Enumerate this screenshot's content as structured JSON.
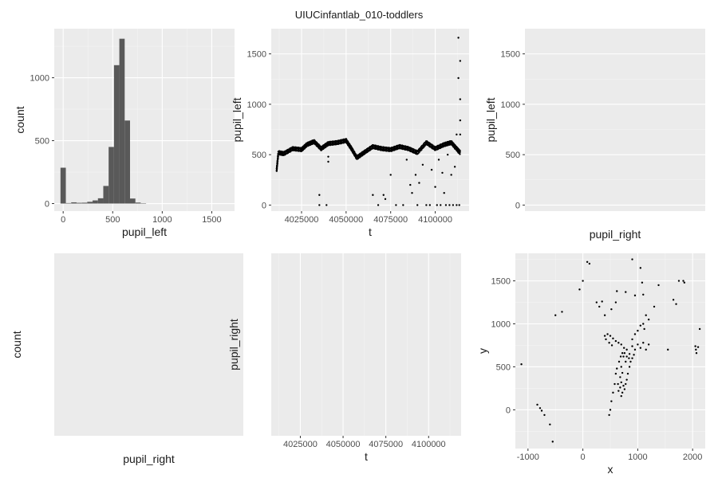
{
  "title": "UIUCinfantlab_010-toddlers",
  "chart_data": [
    {
      "id": "hist-pupil-left",
      "type": "bar",
      "xlabel": "pupil_left",
      "ylabel": "count",
      "xlim": [
        -90,
        1730
      ],
      "ylim": [
        -60,
        1390
      ],
      "xticks": [
        0,
        500,
        1000,
        1500
      ],
      "yticks": [
        0,
        500,
        1000
      ],
      "bins": [
        {
          "x0": -27,
          "x1": 27,
          "count": 285
        },
        {
          "x0": 27,
          "x1": 81,
          "count": 4
        },
        {
          "x0": 81,
          "x1": 135,
          "count": 10
        },
        {
          "x0": 135,
          "x1": 189,
          "count": 6
        },
        {
          "x0": 189,
          "x1": 243,
          "count": 7
        },
        {
          "x0": 243,
          "x1": 297,
          "count": 14
        },
        {
          "x0": 297,
          "x1": 351,
          "count": 25
        },
        {
          "x0": 351,
          "x1": 405,
          "count": 42
        },
        {
          "x0": 405,
          "x1": 459,
          "count": 140
        },
        {
          "x0": 459,
          "x1": 513,
          "count": 450
        },
        {
          "x0": 513,
          "x1": 567,
          "count": 1100
        },
        {
          "x0": 567,
          "x1": 621,
          "count": 1310
        },
        {
          "x0": 621,
          "x1": 675,
          "count": 660
        },
        {
          "x0": 675,
          "x1": 729,
          "count": 40
        },
        {
          "x0": 729,
          "x1": 783,
          "count": 8
        },
        {
          "x0": 783,
          "x1": 837,
          "count": 3
        }
      ]
    },
    {
      "id": "scatter-t-pupil-left",
      "type": "scatter",
      "xlabel": "t",
      "ylabel": "pupil_left",
      "xlim": [
        4008000,
        4119000
      ],
      "ylim": [
        -60,
        1750
      ],
      "xticks": [
        4025000,
        4050000,
        4075000,
        4100000
      ],
      "yticks": [
        0,
        500,
        1000,
        1500
      ],
      "trace": [
        [
          4011000,
          340
        ],
        [
          4012000,
          520
        ],
        [
          4015000,
          510
        ],
        [
          4020000,
          560
        ],
        [
          4025000,
          550
        ],
        [
          4028000,
          600
        ],
        [
          4032000,
          630
        ],
        [
          4036000,
          560
        ],
        [
          4040000,
          610
        ],
        [
          4045000,
          620
        ],
        [
          4050000,
          640
        ],
        [
          4053000,
          560
        ],
        [
          4056000,
          470
        ],
        [
          4060000,
          520
        ],
        [
          4065000,
          580
        ],
        [
          4070000,
          560
        ],
        [
          4075000,
          550
        ],
        [
          4080000,
          580
        ],
        [
          4085000,
          560
        ],
        [
          4090000,
          520
        ],
        [
          4095000,
          620
        ],
        [
          4100000,
          560
        ],
        [
          4105000,
          600
        ],
        [
          4109000,
          620
        ],
        [
          4112000,
          560
        ],
        [
          4114000,
          520
        ]
      ],
      "points": [
        [
          4035000,
          0
        ],
        [
          4035000,
          100
        ],
        [
          4039000,
          0
        ],
        [
          4040000,
          430
        ],
        [
          4040000,
          480
        ],
        [
          4065000,
          100
        ],
        [
          4068000,
          0
        ],
        [
          4071000,
          100
        ],
        [
          4072000,
          60
        ],
        [
          4075000,
          300
        ],
        [
          4078000,
          0
        ],
        [
          4082000,
          0
        ],
        [
          4084000,
          450
        ],
        [
          4086000,
          200
        ],
        [
          4087000,
          120
        ],
        [
          4089000,
          300
        ],
        [
          4090000,
          0
        ],
        [
          4091000,
          220
        ],
        [
          4093000,
          400
        ],
        [
          4095000,
          0
        ],
        [
          4097000,
          0
        ],
        [
          4098000,
          350
        ],
        [
          4100000,
          180
        ],
        [
          4101000,
          0
        ],
        [
          4102000,
          450
        ],
        [
          4103000,
          0
        ],
        [
          4104000,
          320
        ],
        [
          4105000,
          120
        ],
        [
          4106000,
          0
        ],
        [
          4107000,
          500
        ],
        [
          4108000,
          0
        ],
        [
          4109000,
          300
        ],
        [
          4110000,
          0
        ],
        [
          4111000,
          380
        ],
        [
          4112000,
          0
        ],
        [
          4113000,
          520
        ],
        [
          4113500,
          0
        ],
        [
          4114000,
          700
        ],
        [
          4114000,
          840
        ],
        [
          4114000,
          1050
        ],
        [
          4114000,
          1430
        ],
        [
          4113000,
          1660
        ],
        [
          4113000,
          1260
        ],
        [
          4112000,
          700
        ],
        [
          4111000,
          560
        ]
      ]
    },
    {
      "id": "scatter-pupil-right-pupil-left",
      "type": "scatter",
      "xlabel": "pupil_right",
      "ylabel": "pupil_left",
      "ylim": [
        -60,
        1750
      ],
      "yticks": [
        0,
        500,
        1000,
        1500
      ],
      "points": []
    },
    {
      "id": "hist-pupil-right",
      "type": "bar",
      "xlabel": "pupil_right",
      "ylabel": "count",
      "bins": []
    },
    {
      "id": "scatter-t-pupil-right",
      "type": "scatter",
      "xlabel": "t",
      "ylabel": "pupil_right",
      "xlim": [
        4008000,
        4119000
      ],
      "xticks": [
        4025000,
        4050000,
        4075000,
        4100000
      ],
      "points": []
    },
    {
      "id": "scatter-x-y",
      "type": "scatter",
      "xlabel": "x",
      "ylabel": "y",
      "xlim": [
        -1230,
        2230
      ],
      "ylim": [
        -450,
        1820
      ],
      "xticks": [
        -1000,
        0,
        1000,
        2000
      ],
      "yticks": [
        0,
        500,
        1000,
        1500
      ],
      "points": [
        [
          -1120,
          530
        ],
        [
          -830,
          60
        ],
        [
          -780,
          20
        ],
        [
          -750,
          -10
        ],
        [
          -700,
          -60
        ],
        [
          -600,
          -170
        ],
        [
          -550,
          -370
        ],
        [
          -500,
          1100
        ],
        [
          -380,
          1140
        ],
        [
          -60,
          1400
        ],
        [
          0,
          1500
        ],
        [
          80,
          1720
        ],
        [
          120,
          1700
        ],
        [
          250,
          1250
        ],
        [
          300,
          1200
        ],
        [
          350,
          1260
        ],
        [
          400,
          1100
        ],
        [
          520,
          1170
        ],
        [
          600,
          1250
        ],
        [
          620,
          1380
        ],
        [
          780,
          1370
        ],
        [
          900,
          1750
        ],
        [
          950,
          1330
        ],
        [
          1050,
          1650
        ],
        [
          1080,
          1480
        ],
        [
          1100,
          1340
        ],
        [
          1150,
          1100
        ],
        [
          1200,
          1050
        ],
        [
          1300,
          1200
        ],
        [
          1380,
          1450
        ],
        [
          1550,
          700
        ],
        [
          1650,
          1280
        ],
        [
          1700,
          1230
        ],
        [
          1750,
          1500
        ],
        [
          1830,
          1500
        ],
        [
          1850,
          1480
        ],
        [
          2050,
          740
        ],
        [
          2060,
          700
        ],
        [
          2070,
          660
        ],
        [
          2100,
          730
        ],
        [
          2130,
          940
        ],
        [
          900,
          740
        ],
        [
          950,
          700
        ],
        [
          1000,
          760
        ],
        [
          1050,
          720
        ],
        [
          1100,
          780
        ],
        [
          1150,
          700
        ],
        [
          1200,
          760
        ],
        [
          850,
          650
        ],
        [
          800,
          700
        ],
        [
          750,
          720
        ],
        [
          700,
          760
        ],
        [
          650,
          780
        ],
        [
          600,
          800
        ],
        [
          550,
          830
        ],
        [
          500,
          860
        ],
        [
          450,
          880
        ],
        [
          400,
          860
        ],
        [
          420,
          820
        ],
        [
          480,
          780
        ],
        [
          530,
          750
        ],
        [
          900,
          820
        ],
        [
          950,
          880
        ],
        [
          1000,
          920
        ],
        [
          1050,
          980
        ],
        [
          1100,
          1000
        ],
        [
          1120,
          940
        ],
        [
          700,
          500
        ],
        [
          720,
          430
        ],
        [
          680,
          380
        ],
        [
          700,
          320
        ],
        [
          740,
          280
        ],
        [
          760,
          240
        ],
        [
          720,
          200
        ],
        [
          680,
          260
        ],
        [
          640,
          300
        ],
        [
          650,
          220
        ],
        [
          700,
          160
        ],
        [
          780,
          300
        ],
        [
          800,
          350
        ],
        [
          820,
          420
        ],
        [
          850,
          500
        ],
        [
          870,
          560
        ],
        [
          900,
          600
        ],
        [
          930,
          640
        ],
        [
          780,
          560
        ],
        [
          740,
          620
        ],
        [
          580,
          300
        ],
        [
          550,
          200
        ],
        [
          520,
          100
        ],
        [
          500,
          0
        ],
        [
          480,
          -60
        ],
        [
          600,
          420
        ],
        [
          620,
          480
        ],
        [
          660,
          560
        ],
        [
          690,
          620
        ],
        [
          720,
          660
        ],
        [
          760,
          660
        ],
        [
          800,
          620
        ],
        [
          840,
          600
        ]
      ]
    }
  ]
}
